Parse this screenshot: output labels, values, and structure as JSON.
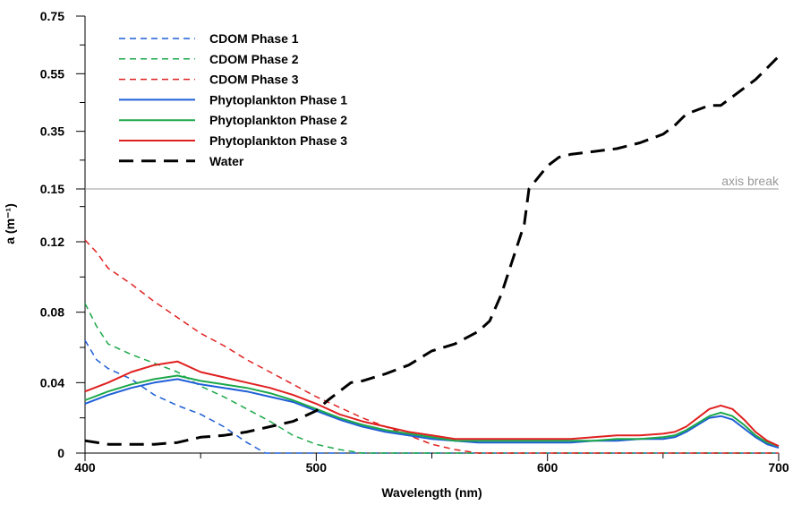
{
  "chart_data": {
    "type": "line",
    "xlabel": "Wavelength (nm)",
    "ylabel": "a (m⁻¹)",
    "xlim": [
      400,
      700
    ],
    "x_ticks": [
      "400",
      "500",
      "600",
      "700"
    ],
    "lower_axis": {
      "ylim": [
        0,
        0.15
      ],
      "y_ticks": [
        "0",
        "0.04",
        "0.08",
        "0.12"
      ]
    },
    "upper_axis": {
      "ylim": [
        0.15,
        0.75
      ],
      "y_ticks": [
        "0.15",
        "0.35",
        "0.55",
        "0.75"
      ]
    },
    "axis_break_label": "axis break",
    "legend_position": "top-left",
    "series": [
      {
        "name": "CDOM Phase 1",
        "color": "#1f5fd6",
        "style": "dashed",
        "x": [
          400,
          405,
          410,
          420,
          430,
          440,
          450,
          460,
          470,
          478,
          490,
          500,
          550,
          600,
          650,
          700
        ],
        "y": [
          0.064,
          0.053,
          0.048,
          0.042,
          0.033,
          0.027,
          0.022,
          0.015,
          0.006,
          0.0,
          0.0,
          0.0,
          0.0,
          0.0,
          0.0,
          0.0
        ]
      },
      {
        "name": "CDOM Phase 2",
        "color": "#1ca84a",
        "style": "dashed",
        "x": [
          400,
          405,
          410,
          420,
          430,
          440,
          450,
          460,
          470,
          480,
          490,
          500,
          510,
          520,
          550,
          600,
          650,
          700
        ],
        "y": [
          0.085,
          0.072,
          0.062,
          0.056,
          0.051,
          0.046,
          0.038,
          0.032,
          0.025,
          0.018,
          0.01,
          0.005,
          0.002,
          0.0,
          0.0,
          0.0,
          0.0,
          0.0
        ]
      },
      {
        "name": "CDOM Phase 3",
        "color": "#e02020",
        "style": "dashed",
        "x": [
          400,
          405,
          410,
          420,
          430,
          440,
          450,
          460,
          470,
          480,
          490,
          500,
          510,
          520,
          530,
          540,
          550,
          560,
          570,
          580,
          600,
          650,
          700
        ],
        "y": [
          0.121,
          0.114,
          0.105,
          0.096,
          0.086,
          0.077,
          0.068,
          0.061,
          0.053,
          0.046,
          0.039,
          0.032,
          0.026,
          0.02,
          0.015,
          0.01,
          0.005,
          0.002,
          0.0,
          0.0,
          0.0,
          0.0,
          0.0
        ]
      },
      {
        "name": "Phytoplankton Phase 1",
        "color": "#1f5fd6",
        "style": "solid",
        "x": [
          400,
          410,
          420,
          430,
          440,
          450,
          460,
          470,
          480,
          490,
          500,
          510,
          520,
          530,
          540,
          550,
          560,
          570,
          580,
          590,
          600,
          610,
          620,
          630,
          640,
          650,
          655,
          660,
          665,
          670,
          675,
          680,
          685,
          690,
          695,
          700
        ],
        "y": [
          0.028,
          0.033,
          0.037,
          0.04,
          0.042,
          0.039,
          0.037,
          0.035,
          0.032,
          0.029,
          0.024,
          0.019,
          0.015,
          0.012,
          0.01,
          0.008,
          0.007,
          0.006,
          0.006,
          0.006,
          0.006,
          0.006,
          0.007,
          0.007,
          0.008,
          0.008,
          0.009,
          0.012,
          0.016,
          0.02,
          0.021,
          0.019,
          0.014,
          0.009,
          0.005,
          0.003
        ]
      },
      {
        "name": "Phytoplankton Phase 2",
        "color": "#1ca84a",
        "style": "solid",
        "x": [
          400,
          410,
          420,
          430,
          440,
          450,
          460,
          470,
          480,
          490,
          500,
          510,
          520,
          530,
          540,
          550,
          560,
          570,
          580,
          590,
          600,
          610,
          620,
          630,
          640,
          650,
          655,
          660,
          665,
          670,
          675,
          680,
          685,
          690,
          695,
          700
        ],
        "y": [
          0.03,
          0.035,
          0.039,
          0.042,
          0.044,
          0.041,
          0.039,
          0.037,
          0.034,
          0.03,
          0.025,
          0.02,
          0.016,
          0.013,
          0.011,
          0.009,
          0.007,
          0.007,
          0.007,
          0.007,
          0.007,
          0.007,
          0.007,
          0.008,
          0.008,
          0.009,
          0.01,
          0.013,
          0.017,
          0.021,
          0.023,
          0.021,
          0.016,
          0.01,
          0.006,
          0.004
        ]
      },
      {
        "name": "Phytoplankton Phase 3",
        "color": "#e02020",
        "style": "solid",
        "x": [
          400,
          410,
          420,
          430,
          440,
          450,
          460,
          470,
          480,
          490,
          500,
          510,
          520,
          530,
          540,
          550,
          560,
          570,
          580,
          590,
          600,
          610,
          620,
          630,
          640,
          650,
          655,
          660,
          665,
          670,
          675,
          680,
          685,
          690,
          695,
          700
        ],
        "y": [
          0.035,
          0.04,
          0.046,
          0.05,
          0.052,
          0.046,
          0.043,
          0.04,
          0.037,
          0.033,
          0.028,
          0.022,
          0.018,
          0.015,
          0.012,
          0.01,
          0.008,
          0.008,
          0.008,
          0.008,
          0.008,
          0.008,
          0.009,
          0.01,
          0.01,
          0.011,
          0.012,
          0.015,
          0.02,
          0.025,
          0.027,
          0.025,
          0.019,
          0.012,
          0.007,
          0.004
        ]
      },
      {
        "name": "Water",
        "color": "#000000",
        "style": "longdash",
        "x": [
          400,
          410,
          420,
          430,
          440,
          450,
          460,
          470,
          480,
          490,
          500,
          505,
          510,
          515,
          520,
          530,
          540,
          550,
          560,
          570,
          575,
          580,
          585,
          590,
          592,
          595,
          600,
          605,
          610,
          620,
          630,
          640,
          650,
          655,
          660,
          670,
          675,
          680,
          690,
          700
        ],
        "y": [
          0.007,
          0.005,
          0.005,
          0.005,
          0.006,
          0.009,
          0.01,
          0.012,
          0.015,
          0.018,
          0.024,
          0.03,
          0.035,
          0.04,
          0.041,
          0.045,
          0.05,
          0.058,
          0.062,
          0.069,
          0.075,
          0.09,
          0.11,
          0.13,
          0.15,
          0.18,
          0.23,
          0.26,
          0.27,
          0.28,
          0.29,
          0.31,
          0.34,
          0.37,
          0.41,
          0.44,
          0.44,
          0.47,
          0.53,
          0.61
        ]
      }
    ]
  }
}
